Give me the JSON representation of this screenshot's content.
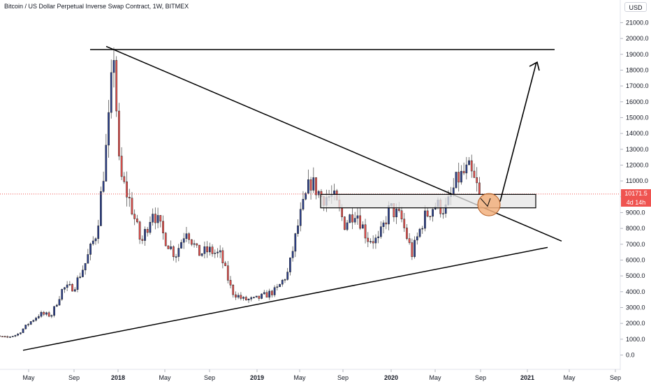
{
  "header": {
    "title": "Bitcoin / US Dollar Perpetual Inverse Swap Contract, 1W, BITMEX",
    "currency": "USD",
    "currency_badge": "2"
  },
  "price_tag": {
    "value": "10171.5",
    "countdown": "4d 14h"
  },
  "colors": {
    "up": "#2a3f8f",
    "down": "#ef5350",
    "last_price_line": "#ef5350",
    "drawing": "#000000",
    "zone_fill": "#e6e6e6",
    "circle_fill": "#f2b07e",
    "circle_stroke": "#b35a1f"
  },
  "chart_data": {
    "type": "candlestick",
    "title": "Bitcoin / US Dollar Perpetual Inverse Swap Contract, 1W, BITMEX",
    "y_axis": {
      "min": 0,
      "max": 22000,
      "tick_labels": [
        "0.0",
        "1000.0",
        "2000.0",
        "3000.0",
        "4000.0",
        "5000.0",
        "6000.0",
        "7000.0",
        "8000.0",
        "9000.0",
        "10000.0",
        "11000.0",
        "12000.0",
        "13000.0",
        "14000.0",
        "15000.0",
        "16000.0",
        "17000.0",
        "18000.0",
        "19000.0",
        "20000.0",
        "21000.0"
      ]
    },
    "x_axis": {
      "tick_labels": [
        "May",
        "Sep",
        "2018",
        "May",
        "Sep",
        "2019",
        "May",
        "Sep",
        "2020",
        "May",
        "Sep",
        "2021",
        "May",
        "Sep"
      ],
      "tick_dates": [
        "2017-05",
        "2017-09",
        "2018-01",
        "2018-05",
        "2018-09",
        "2019-01",
        "2019-05",
        "2019-09",
        "2020-01",
        "2020-05",
        "2020-09",
        "2021-01",
        "2021-05",
        "2021-09"
      ]
    },
    "last_price": 10171.5,
    "series": [
      {
        "candles_weekly_close": [
          [
            "2017-01",
            1000
          ],
          [
            "2017-02",
            1200
          ],
          [
            "2017-03",
            1100
          ],
          [
            "2017-04",
            1300
          ],
          [
            "2017-05",
            2000
          ],
          [
            "2017-06",
            2600
          ],
          [
            "2017-07",
            2500
          ],
          [
            "2017-08",
            4200
          ],
          [
            "2017-09",
            4300
          ],
          [
            "2017-10",
            5800
          ],
          [
            "2017-11",
            7800
          ],
          [
            "2017-12",
            14000
          ],
          [
            "2017-12-17",
            19200
          ],
          [
            "2018-01",
            11500
          ],
          [
            "2018-02",
            9500
          ],
          [
            "2018-03",
            7000
          ],
          [
            "2018-04",
            9200
          ],
          [
            "2018-05",
            7500
          ],
          [
            "2018-06",
            6300
          ],
          [
            "2018-07",
            8000
          ],
          [
            "2018-08",
            6400
          ],
          [
            "2018-09",
            6600
          ],
          [
            "2018-10",
            6300
          ],
          [
            "2018-11",
            4000
          ],
          [
            "2018-12",
            3500
          ],
          [
            "2019-01",
            3500
          ],
          [
            "2019-02",
            3800
          ],
          [
            "2019-03",
            4100
          ],
          [
            "2019-04",
            5200
          ],
          [
            "2019-05",
            8500
          ],
          [
            "2019-06",
            11000
          ],
          [
            "2019-07",
            10000
          ],
          [
            "2019-08",
            10000
          ],
          [
            "2019-09",
            8300
          ],
          [
            "2019-10",
            9200
          ],
          [
            "2019-11",
            7400
          ],
          [
            "2019-12",
            7200
          ],
          [
            "2020-01",
            9300
          ],
          [
            "2020-02",
            8600
          ],
          [
            "2020-03",
            6400
          ],
          [
            "2020-04",
            8600
          ],
          [
            "2020-05",
            9500
          ],
          [
            "2020-06",
            9200
          ],
          [
            "2020-07",
            11100
          ],
          [
            "2020-08",
            11700
          ],
          [
            "2020-09",
            10171.5
          ]
        ]
      }
    ],
    "annotations": {
      "resistance_top": 19300,
      "zone": [
        9300,
        10150
      ],
      "target": 18500
    },
    "grid": false
  }
}
